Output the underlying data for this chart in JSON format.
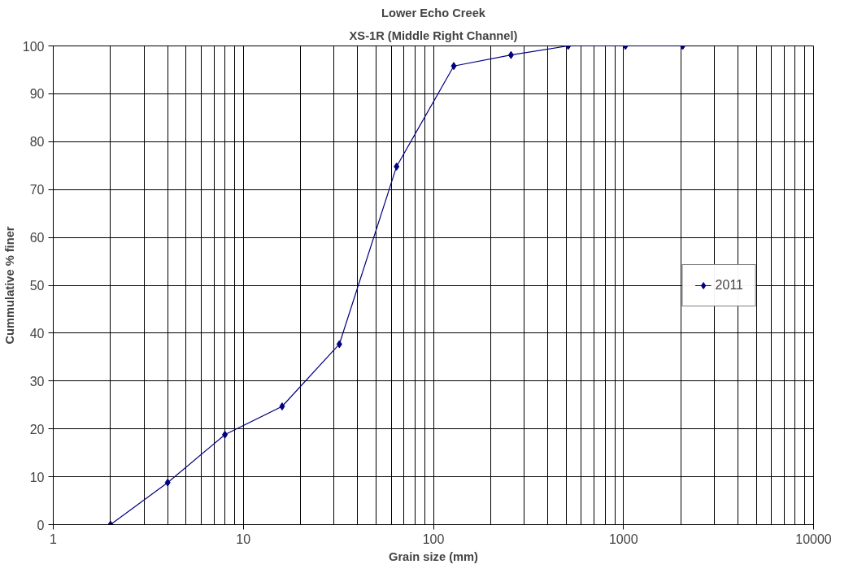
{
  "chart_data": {
    "type": "line",
    "title": "Lower Echo Creek",
    "subtitle": "XS-1R (Middle Right Channel)",
    "xlabel": "Grain size (mm)",
    "ylabel": "Cummulative % finer",
    "x": [
      2,
      4,
      8,
      16,
      32,
      64,
      128,
      256,
      512,
      1024,
      2048
    ],
    "series": [
      {
        "name": "2011",
        "color": "#000080",
        "values": [
          0,
          8.8,
          18.8,
          24.7,
          37.7,
          74.8,
          95.8,
          98.1,
          100,
          100,
          100
        ]
      }
    ],
    "log": "x",
    "xlim": [
      1,
      10000
    ],
    "xticks": [
      1,
      10,
      100,
      1000,
      10000
    ],
    "ylim": [
      0,
      100
    ],
    "yticks": [
      0,
      10,
      20,
      30,
      40,
      50,
      60,
      70,
      80,
      90,
      100
    ],
    "grid": true,
    "legend": "right",
    "marker": "diamond",
    "line_style": "solid"
  }
}
